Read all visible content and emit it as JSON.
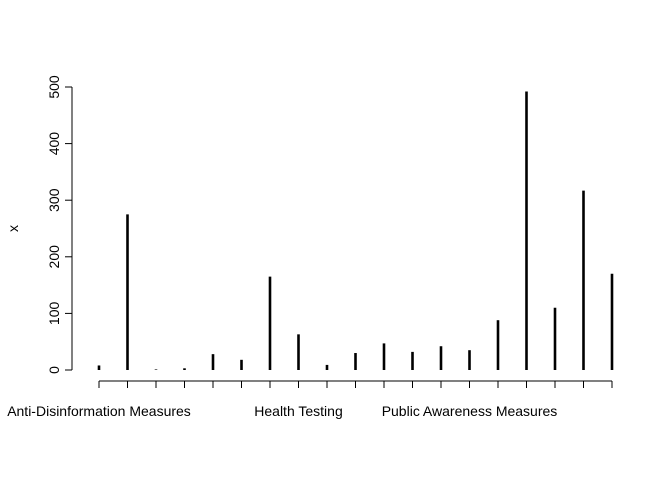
{
  "chart_data": {
    "type": "bar",
    "style": "vertical-lines",
    "ylabel": "x",
    "xlabel": "",
    "title": "",
    "ylim": [
      0,
      500
    ],
    "yticks": [
      0,
      100,
      200,
      300,
      400,
      500
    ],
    "values": [
      8,
      275,
      1,
      3,
      28,
      18,
      165,
      63,
      9,
      30,
      47,
      32,
      42,
      35,
      88,
      492,
      110,
      317,
      170
    ],
    "xtick_labels": [
      {
        "index": 0,
        "label": "Anti-Disinformation Measures"
      },
      {
        "index": 7,
        "label": "Health Testing"
      },
      {
        "index": 13,
        "label": "Public Awareness Measures"
      }
    ],
    "grid": false,
    "color": "#000000"
  }
}
